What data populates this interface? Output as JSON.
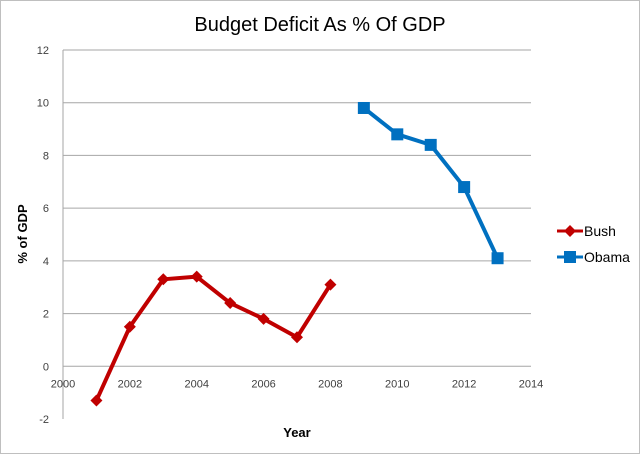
{
  "chart_data": {
    "type": "line",
    "title": "Budget Deficit As % Of GDP",
    "xlabel": "Year",
    "ylabel": "% of GDP",
    "xlim": [
      2000,
      2014
    ],
    "ylim": [
      -2,
      12
    ],
    "x_ticks": [
      "2000",
      "2002",
      "2004",
      "2006",
      "2008",
      "2010",
      "2012",
      "2014"
    ],
    "y_ticks": [
      "-2",
      "0",
      "2",
      "4",
      "6",
      "8",
      "10",
      "12"
    ],
    "grid": "horizontal",
    "legend_position": "right",
    "series": [
      {
        "name": "Bush",
        "color": "#c00000",
        "marker": "diamond",
        "x": [
          2001,
          2002,
          2003,
          2004,
          2005,
          2006,
          2007,
          2008
        ],
        "values": [
          -1.3,
          1.5,
          3.3,
          3.4,
          2.4,
          1.8,
          1.1,
          3.1
        ]
      },
      {
        "name": "Obama",
        "color": "#0070c0",
        "marker": "square",
        "x": [
          2009,
          2010,
          2011,
          2012,
          2013
        ],
        "values": [
          9.8,
          8.8,
          8.4,
          6.8,
          4.1
        ]
      }
    ]
  }
}
